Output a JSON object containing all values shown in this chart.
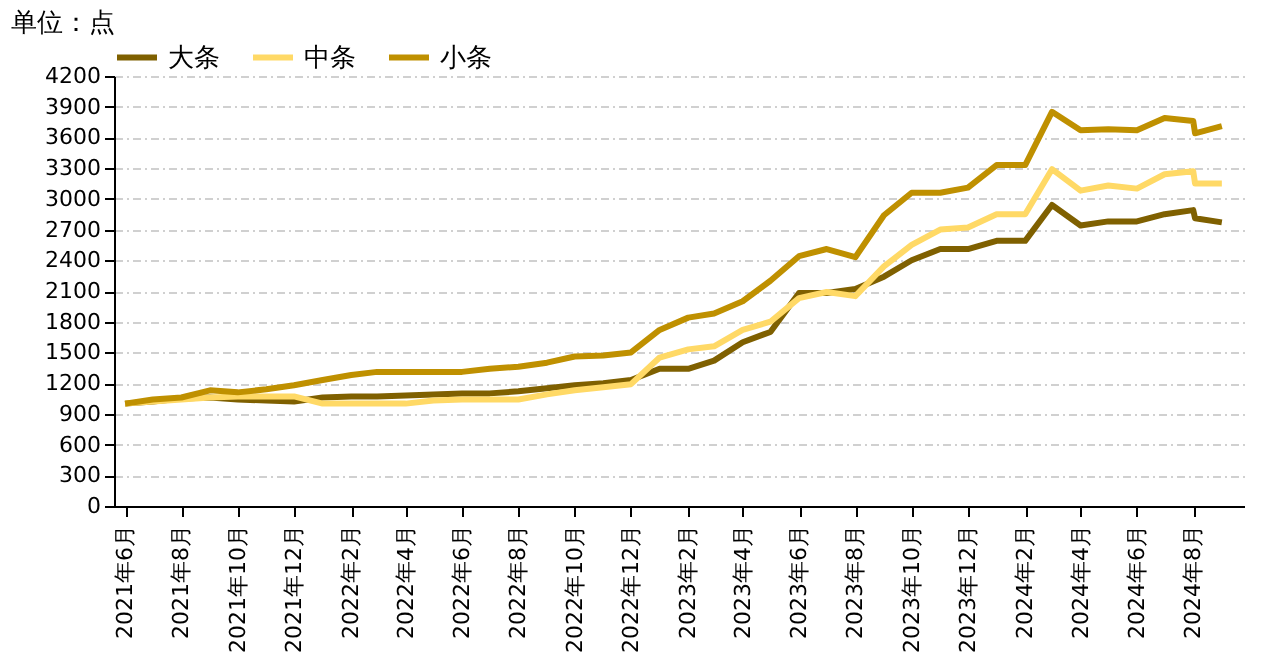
{
  "chart_data": {
    "type": "line",
    "ylabel": "单位：点",
    "x": [
      "2021-06-01",
      "2021-07-01",
      "2021-08-01",
      "2021-09-01",
      "2021-10-01",
      "2021-11-01",
      "2021-12-01",
      "2022-01-01",
      "2022-02-01",
      "2022-03-01",
      "2022-04-01",
      "2022-05-01",
      "2022-06-01",
      "2022-07-01",
      "2022-08-01",
      "2022-09-01",
      "2022-10-01",
      "2022-11-01",
      "2022-12-01",
      "2023-01-01",
      "2023-02-01",
      "2023-03-01",
      "2023-04-01",
      "2023-05-01",
      "2023-06-01",
      "2023-07-01",
      "2023-08-01",
      "2023-09-01",
      "2023-10-01",
      "2023-11-01",
      "2023-12-01",
      "2024-01-01",
      "2024-02-01",
      "2024-03-01",
      "2024-04-01",
      "2024-05-01",
      "2024-06-01",
      "2024-07-01",
      "2024-08-01",
      "2024-08-03",
      "2024-09-01"
    ],
    "series": [
      {
        "name": "大条",
        "color": "#7f6000",
        "values": [
          1000,
          1020,
          1050,
          1060,
          1040,
          1030,
          1020,
          1060,
          1070,
          1070,
          1080,
          1090,
          1100,
          1100,
          1120,
          1150,
          1180,
          1200,
          1230,
          1340,
          1340,
          1420,
          1600,
          1700,
          2080,
          2080,
          2120,
          2240,
          2400,
          2510,
          2510,
          2590,
          2590,
          2940,
          2740,
          2780,
          2780,
          2850,
          2890,
          2810,
          2770
        ]
      },
      {
        "name": "中条",
        "color": "#ffd966",
        "values": [
          1000,
          1020,
          1040,
          1060,
          1070,
          1070,
          1070,
          1000,
          1000,
          1000,
          1000,
          1030,
          1040,
          1040,
          1040,
          1090,
          1130,
          1160,
          1190,
          1450,
          1530,
          1560,
          1720,
          1800,
          2030,
          2090,
          2050,
          2340,
          2550,
          2700,
          2720,
          2850,
          2850,
          3290,
          3080,
          3130,
          3100,
          3240,
          3270,
          3150,
          3150
        ]
      },
      {
        "name": "小条",
        "color": "#bf9000",
        "values": [
          1000,
          1040,
          1060,
          1130,
          1110,
          1140,
          1180,
          1230,
          1280,
          1310,
          1310,
          1310,
          1310,
          1340,
          1360,
          1400,
          1460,
          1470,
          1500,
          1720,
          1840,
          1880,
          2000,
          2200,
          2440,
          2510,
          2430,
          2840,
          3060,
          3060,
          3110,
          3330,
          3330,
          3850,
          3670,
          3680,
          3670,
          3790,
          3760,
          3640,
          3710
        ]
      }
    ],
    "xlim": [
      "2021-05-20",
      "2024-09-25"
    ],
    "xticks": [
      {
        "value": "2021-06-01",
        "label": "2021年6月"
      },
      {
        "value": "2021-08-01",
        "label": "2021年8月"
      },
      {
        "value": "2021-10-01",
        "label": "2021年10月"
      },
      {
        "value": "2021-12-01",
        "label": "2021年12月"
      },
      {
        "value": "2022-02-01",
        "label": "2022年2月"
      },
      {
        "value": "2022-04-01",
        "label": "2022年4月"
      },
      {
        "value": "2022-06-01",
        "label": "2022年6月"
      },
      {
        "value": "2022-08-01",
        "label": "2022年8月"
      },
      {
        "value": "2022-10-01",
        "label": "2022年10月"
      },
      {
        "value": "2022-12-01",
        "label": "2022年12月"
      },
      {
        "value": "2023-02-01",
        "label": "2023年2月"
      },
      {
        "value": "2023-04-01",
        "label": "2023年4月"
      },
      {
        "value": "2023-06-01",
        "label": "2023年6月"
      },
      {
        "value": "2023-08-01",
        "label": "2023年8月"
      },
      {
        "value": "2023-10-01",
        "label": "2023年10月"
      },
      {
        "value": "2023-12-01",
        "label": "2023年12月"
      },
      {
        "value": "2024-02-01",
        "label": "2024年2月"
      },
      {
        "value": "2024-04-01",
        "label": "2024年4月"
      },
      {
        "value": "2024-06-01",
        "label": "2024年6月"
      },
      {
        "value": "2024-08-01",
        "label": "2024年8月"
      }
    ],
    "ylim": [
      0,
      4200
    ],
    "yticks": [
      0,
      300,
      600,
      900,
      1200,
      1500,
      1800,
      2100,
      2400,
      2700,
      3000,
      3300,
      3600,
      3900,
      4200
    ],
    "grid": "y",
    "legend": "top",
    "marker": "none",
    "line_style": "solid"
  }
}
